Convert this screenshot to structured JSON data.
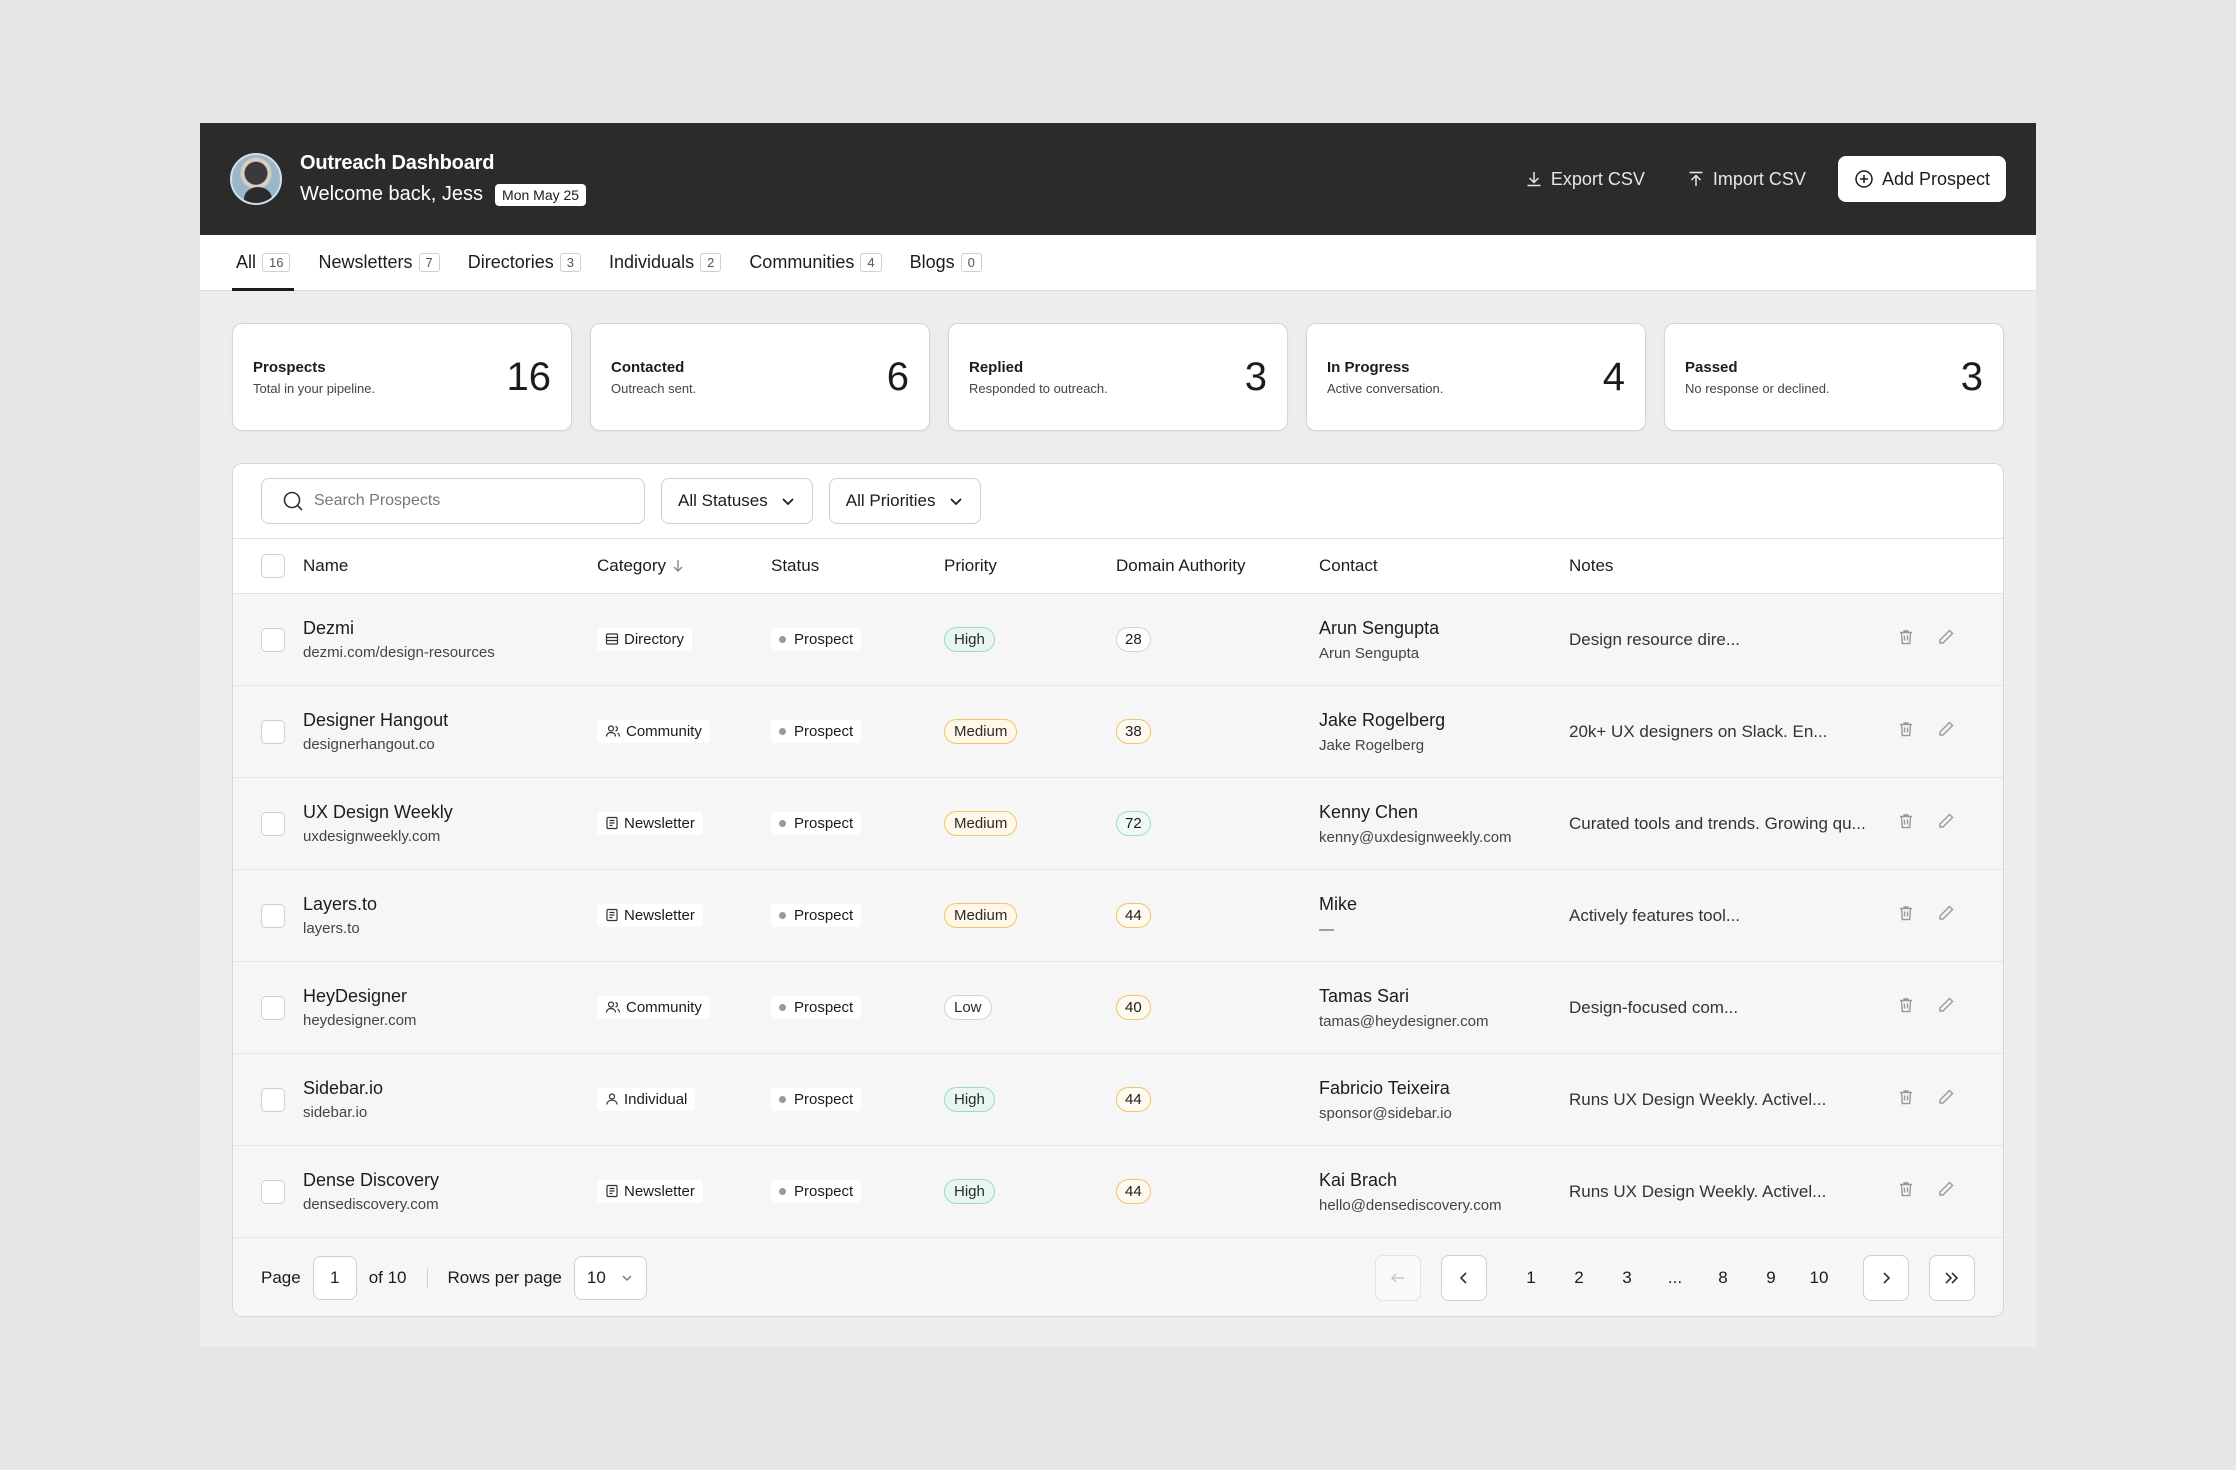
{
  "header": {
    "title": "Outreach Dashboard",
    "welcome": "Welcome back, Jess",
    "date": "Mon May 25",
    "export_label": "Export CSV",
    "import_label": "Import CSV",
    "add_label": "Add Prospect"
  },
  "tabs": [
    {
      "label": "All",
      "count": "16"
    },
    {
      "label": "Newsletters",
      "count": "7"
    },
    {
      "label": "Directories",
      "count": "3"
    },
    {
      "label": "Individuals",
      "count": "2"
    },
    {
      "label": "Communities",
      "count": "4"
    },
    {
      "label": "Blogs",
      "count": "0"
    }
  ],
  "stats": [
    {
      "title": "Prospects",
      "desc": "Total in your pipeline.",
      "value": "16"
    },
    {
      "title": "Contacted",
      "desc": "Outreach sent.",
      "value": "6"
    },
    {
      "title": "Replied",
      "desc": "Responded to outreach.",
      "value": "3"
    },
    {
      "title": "In Progress",
      "desc": "Active conversation.",
      "value": "4"
    },
    {
      "title": "Passed",
      "desc": "No response or declined.",
      "value": "3"
    }
  ],
  "filters": {
    "search_placeholder": "Search Prospects",
    "status": "All Statuses",
    "priority": "All Priorities"
  },
  "columns": {
    "name": "Name",
    "category": "Category",
    "status": "Status",
    "priority": "Priority",
    "da": "Domain Authority",
    "contact": "Contact",
    "notes": "Notes"
  },
  "rows": [
    {
      "name": "Dezmi",
      "url": "dezmi.com/design-resources",
      "category": "Directory",
      "status": "Prospect",
      "priority": "High",
      "da": "28",
      "contact": "Arun Sengupta",
      "contact_sub": "Arun Sengupta",
      "notes": "Design resource dire..."
    },
    {
      "name": "Designer Hangout",
      "url": "designerhangout.co",
      "category": "Community",
      "status": "Prospect",
      "priority": "Medium",
      "da": "38",
      "contact": "Jake Rogelberg",
      "contact_sub": "Jake Rogelberg",
      "notes": "20k+ UX designers on Slack. En..."
    },
    {
      "name": "UX Design Weekly",
      "url": "uxdesignweekly.com",
      "category": "Newsletter",
      "status": "Prospect",
      "priority": "Medium",
      "da": "72",
      "contact": "Kenny Chen",
      "contact_sub": "kenny@uxdesignweekly.com",
      "notes": "Curated tools and trends. Growing qu..."
    },
    {
      "name": "Layers.to",
      "url": "layers.to",
      "category": "Newsletter",
      "status": "Prospect",
      "priority": "Medium",
      "da": "44",
      "contact": "Mike",
      "contact_sub": "—",
      "notes": "Actively features tool..."
    },
    {
      "name": "HeyDesigner",
      "url": "heydesigner.com",
      "category": "Community",
      "status": "Prospect",
      "priority": "Low",
      "da": "40",
      "contact": "Tamas Sari",
      "contact_sub": "tamas@heydesigner.com",
      "notes": "Design-focused com..."
    },
    {
      "name": "Sidebar.io",
      "url": "sidebar.io",
      "category": "Individual",
      "status": "Prospect",
      "priority": "High",
      "da": "44",
      "contact": "Fabricio Teixeira",
      "contact_sub": "sponsor@sidebar.io",
      "notes": "Runs UX Design Weekly. Activel..."
    },
    {
      "name": "Dense Discovery",
      "url": "densediscovery.com",
      "category": "Newsletter",
      "status": "Prospect",
      "priority": "High",
      "da": "44",
      "contact": "Kai Brach",
      "contact_sub": "hello@densediscovery.com",
      "notes": "Runs UX Design Weekly. Activel..."
    }
  ],
  "pagination": {
    "page_label": "Page",
    "current": "1",
    "of_label": "of 10",
    "rows_label": "Rows per page",
    "rows_value": "10",
    "pages": [
      "1",
      "2",
      "3",
      "...",
      "8",
      "9",
      "10"
    ]
  }
}
